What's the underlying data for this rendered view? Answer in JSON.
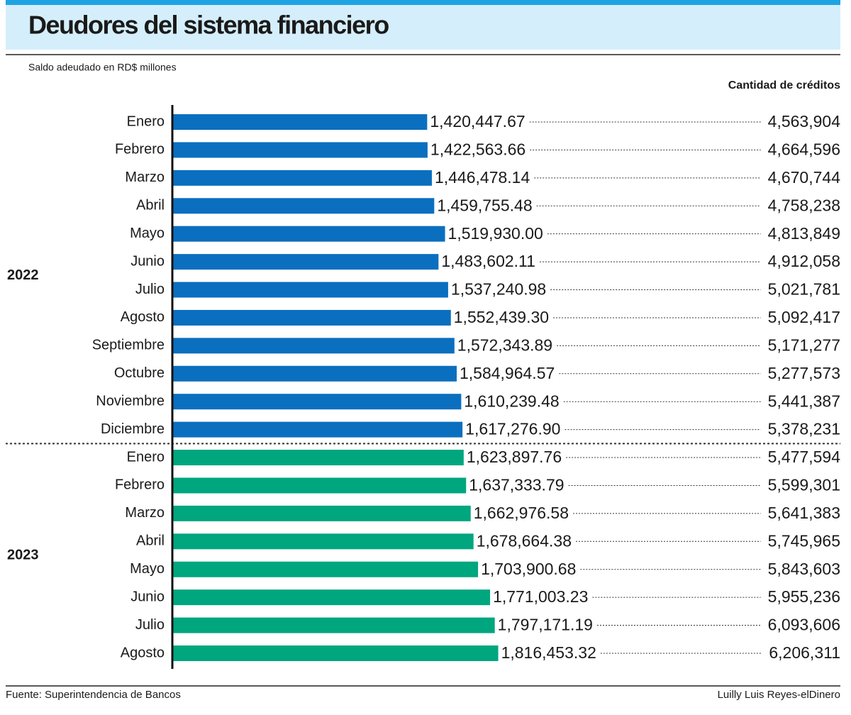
{
  "chart_data": {
    "type": "bar",
    "title": "Deudores del sistema financiero",
    "subtitle": "Saldo adeudado en RD$ millones",
    "column_header": "Cantidad de créditos",
    "source": "Fuente: Superintendencia de Bancos",
    "credit": "Luilly Luis Reyes-elDinero",
    "groups": [
      {
        "name": "2022",
        "color": "#0b6fbf",
        "categories": [
          "Enero",
          "Febrero",
          "Marzo",
          "Abril",
          "Mayo",
          "Junio",
          "Julio",
          "Agosto",
          "Septiembre",
          "Octubre",
          "Noviembre",
          "Diciembre"
        ],
        "values": [
          1420447.67,
          1422563.66,
          1446478.14,
          1459755.48,
          1519930.0,
          1483602.11,
          1537240.98,
          1552439.3,
          1572343.89,
          1584964.57,
          1610239.48,
          1617276.9
        ],
        "value_labels": [
          "1,420,447.67",
          "1,422,563.66",
          "1,446,478.14",
          "1,459,755.48",
          "1,519,930.00",
          "1,483,602.11",
          "1,537,240.98",
          "1,552,439.30",
          "1,572,343.89",
          "1,584,964.57",
          "1,610,239.48",
          "1,617,276.90"
        ],
        "credits": [
          4563904,
          4664596,
          4670744,
          4758238,
          4813849,
          4912058,
          5021781,
          5092417,
          5171277,
          5277573,
          5441387,
          5378231
        ],
        "credit_labels": [
          "4,563,904",
          "4,664,596",
          "4,670,744",
          "4,758,238",
          "4,813,849",
          "4,912,058",
          "5,021,781",
          "5,092,417",
          "5,171,277",
          "5,277,573",
          "5,441,387",
          "5,378,231"
        ]
      },
      {
        "name": "2023",
        "color": "#00a67e",
        "categories": [
          "Enero",
          "Febrero",
          "Marzo",
          "Abril",
          "Mayo",
          "Junio",
          "Julio",
          "Agosto"
        ],
        "values": [
          1623897.76,
          1637333.79,
          1662976.58,
          1678664.38,
          1703900.68,
          1771003.23,
          1797171.19,
          1816453.32
        ],
        "value_labels": [
          "1,623,897.76",
          "1,637,333.79",
          "1,662,976.58",
          "1,678,664.38",
          "1,703,900.68",
          "1,771,003.23",
          "1,797,171.19",
          "1,816,453.32"
        ],
        "credits": [
          5477594,
          5599301,
          5641383,
          5745965,
          5843603,
          5955236,
          6093606,
          6206311
        ],
        "credit_labels": [
          "5,477,594",
          "5,599,301",
          "5,641,383",
          "5,745,965",
          "5,843,603",
          "5,955,236",
          "6,093,606",
          "6,206,311"
        ]
      }
    ]
  }
}
